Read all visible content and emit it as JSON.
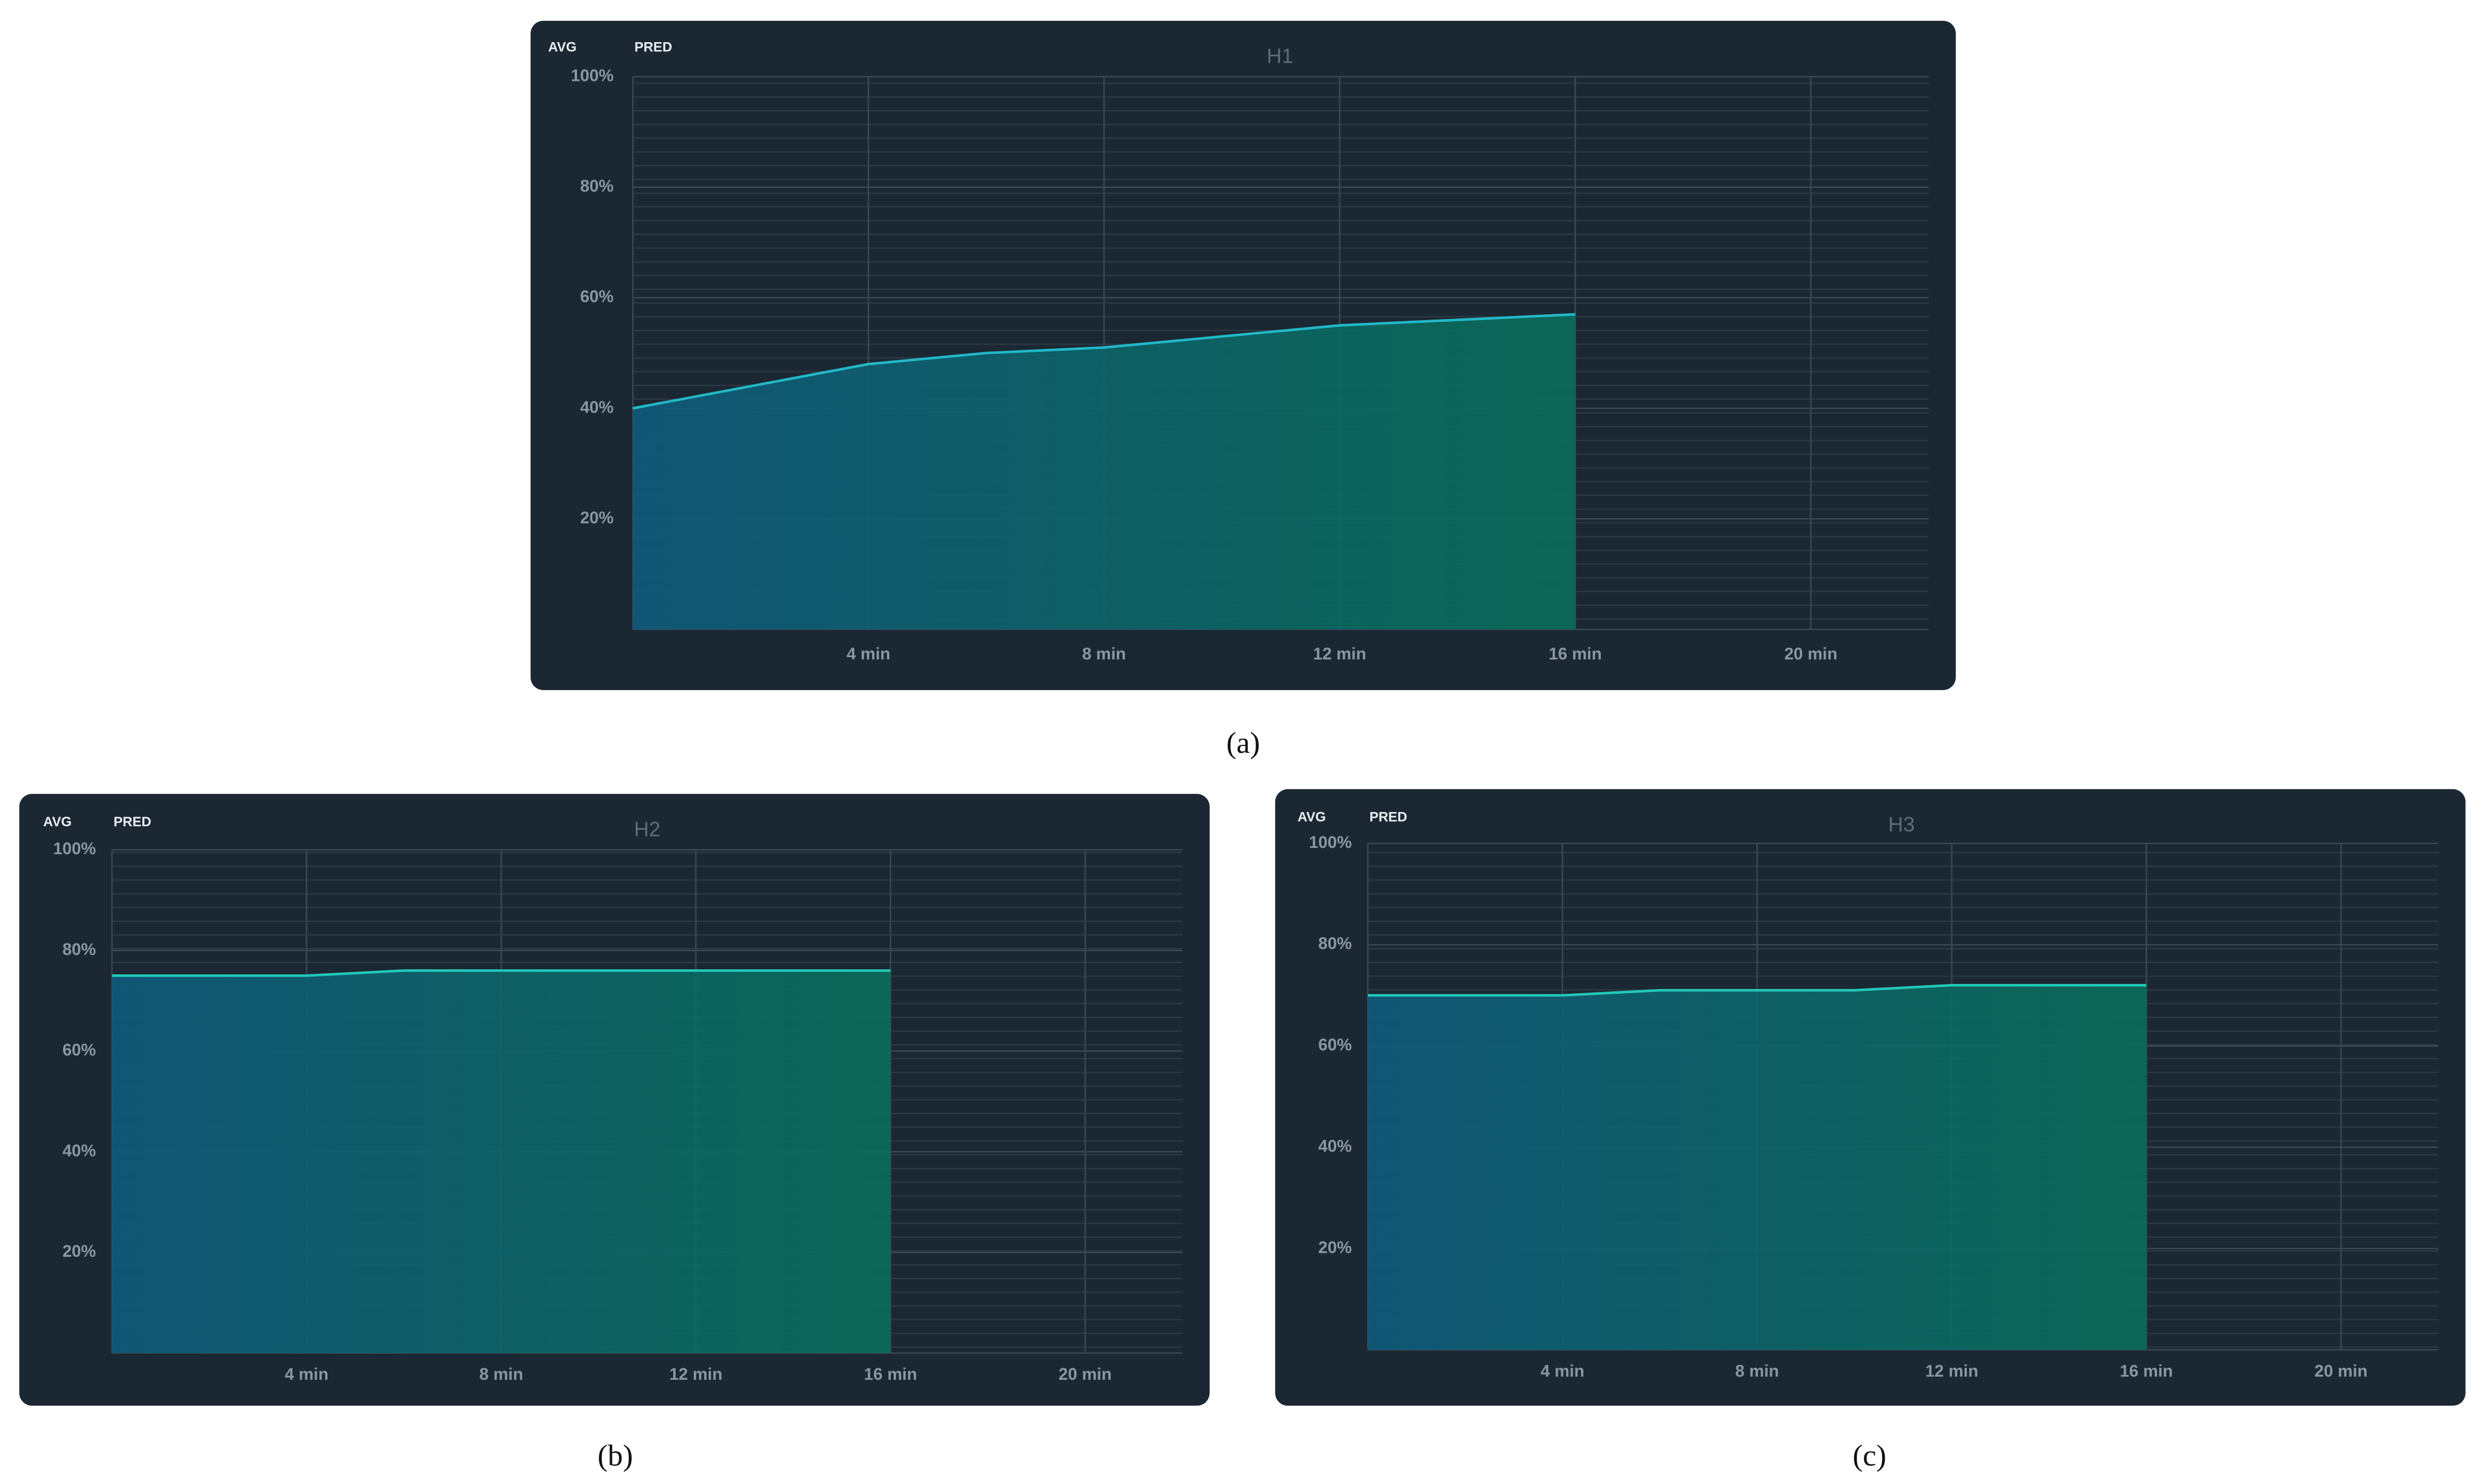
{
  "chart_data": [
    {
      "type": "area",
      "title": "H1",
      "buttons": [
        "AVG",
        "PRED"
      ],
      "caption": "(a)",
      "x": [
        0,
        2,
        4,
        6,
        8,
        10,
        12,
        14,
        16
      ],
      "values": [
        40,
        44,
        48,
        50,
        51,
        53,
        55,
        56,
        57
      ],
      "color": "#22b8c8",
      "fill_colors": [
        "#0f5a7a",
        "#0a6c58"
      ],
      "xlim": [
        0,
        22
      ],
      "xticks": [
        {
          "value": 4,
          "label": "4 min"
        },
        {
          "value": 8,
          "label": "8 min"
        },
        {
          "value": 12,
          "label": "12 min"
        },
        {
          "value": 16,
          "label": "16 min"
        },
        {
          "value": 20,
          "label": "20 min"
        }
      ],
      "ylim": [
        0,
        100
      ],
      "yticks": [
        {
          "value": 20,
          "label": "20%"
        },
        {
          "value": 40,
          "label": "40%"
        },
        {
          "value": 60,
          "label": "60%"
        },
        {
          "value": 80,
          "label": "80%"
        },
        {
          "value": 100,
          "label": "100%"
        }
      ],
      "grid": true
    },
    {
      "type": "area",
      "title": "H2",
      "buttons": [
        "AVG",
        "PRED"
      ],
      "caption": "(b)",
      "x": [
        0,
        2,
        4,
        6,
        8,
        10,
        12,
        14,
        16
      ],
      "values": [
        75,
        75,
        75,
        76,
        76,
        76,
        76,
        76,
        76
      ],
      "color": "#22c8b8",
      "fill_colors": [
        "#0f5a7a",
        "#0a6c58"
      ],
      "xlim": [
        0,
        22
      ],
      "xticks": [
        {
          "value": 4,
          "label": "4 min"
        },
        {
          "value": 8,
          "label": "8 min"
        },
        {
          "value": 12,
          "label": "12 min"
        },
        {
          "value": 16,
          "label": "16 min"
        },
        {
          "value": 20,
          "label": "20 min"
        }
      ],
      "ylim": [
        0,
        100
      ],
      "yticks": [
        {
          "value": 20,
          "label": "20%"
        },
        {
          "value": 40,
          "label": "40%"
        },
        {
          "value": 60,
          "label": "60%"
        },
        {
          "value": 80,
          "label": "80%"
        },
        {
          "value": 100,
          "label": "100%"
        }
      ],
      "grid": true
    },
    {
      "type": "area",
      "title": "H3",
      "buttons": [
        "AVG",
        "PRED"
      ],
      "caption": "(c)",
      "x": [
        0,
        2,
        4,
        6,
        8,
        10,
        12,
        14,
        16
      ],
      "values": [
        70,
        70,
        70,
        71,
        71,
        71,
        72,
        72,
        72
      ],
      "color": "#22c8b8",
      "fill_colors": [
        "#0f5a7a",
        "#0a6c58"
      ],
      "xlim": [
        0,
        22
      ],
      "xticks": [
        {
          "value": 4,
          "label": "4 min"
        },
        {
          "value": 8,
          "label": "8 min"
        },
        {
          "value": 12,
          "label": "12 min"
        },
        {
          "value": 16,
          "label": "16 min"
        },
        {
          "value": 20,
          "label": "20 min"
        }
      ],
      "ylim": [
        0,
        100
      ],
      "yticks": [
        {
          "value": 20,
          "label": "20%"
        },
        {
          "value": 40,
          "label": "40%"
        },
        {
          "value": 60,
          "label": "60%"
        },
        {
          "value": 80,
          "label": "80%"
        },
        {
          "value": 100,
          "label": "100%"
        }
      ],
      "grid": true
    }
  ]
}
